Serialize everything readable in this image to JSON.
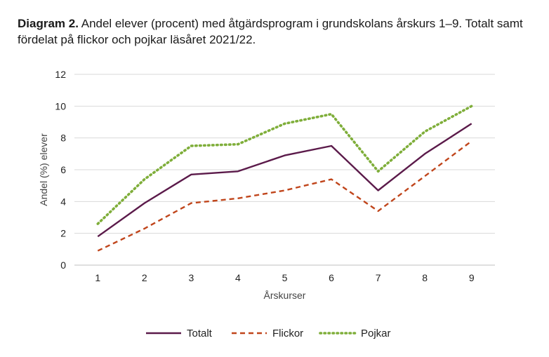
{
  "heading": {
    "label": "Diagram 2.",
    "text": "Andel elever (procent) med åtgärdsprogram i grundskolans årskurs 1–9. Totalt samt fördelat på flickor och pojkar läsåret 2021/22."
  },
  "chart_data": {
    "type": "line",
    "title": "Diagram 2. Andel elever (procent) med åtgärdsprogram i grundskolans årskurs 1–9. Totalt samt fördelat på flickor och pojkar läsåret 2021/22.",
    "xlabel": "Årskurser",
    "ylabel": "Andel (%) elever",
    "categories": [
      "1",
      "2",
      "3",
      "4",
      "5",
      "6",
      "7",
      "8",
      "9"
    ],
    "ylim": [
      0,
      12
    ],
    "yticks": [
      0,
      2,
      4,
      6,
      8,
      10,
      12
    ],
    "grid": true,
    "legend_position": "bottom",
    "series": [
      {
        "name": "Totalt",
        "color": "#5b1a4a",
        "style": "solid",
        "values": [
          1.8,
          3.9,
          5.7,
          5.9,
          6.9,
          7.5,
          4.7,
          7.0,
          8.9
        ]
      },
      {
        "name": "Flickor",
        "color": "#c0451b",
        "style": "dashed",
        "values": [
          0.9,
          2.3,
          3.9,
          4.2,
          4.7,
          5.4,
          3.4,
          5.6,
          7.8
        ]
      },
      {
        "name": "Pojkar",
        "color": "#7fae3a",
        "style": "dotted",
        "values": [
          2.6,
          5.4,
          7.5,
          7.6,
          8.9,
          9.5,
          5.9,
          8.4,
          10.0
        ]
      }
    ]
  }
}
